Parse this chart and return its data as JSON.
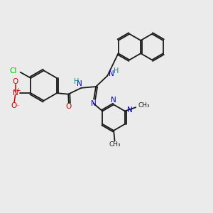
{
  "background_color": "#ebebeb",
  "bond_color": "#1a1a1a",
  "colors": {
    "N": "#0000cc",
    "O": "#cc0000",
    "Cl": "#00bb00",
    "C": "#1a1a1a",
    "H": "#008888"
  }
}
